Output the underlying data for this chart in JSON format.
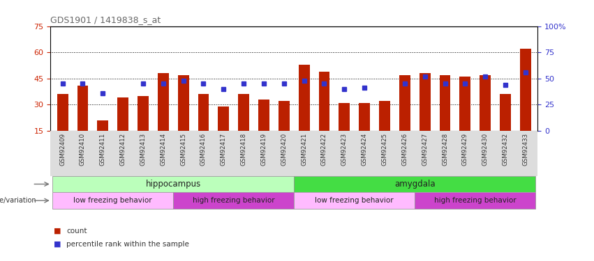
{
  "title": "GDS1901 / 1419838_s_at",
  "samples": [
    "GSM92409",
    "GSM92410",
    "GSM92411",
    "GSM92412",
    "GSM92413",
    "GSM92414",
    "GSM92415",
    "GSM92416",
    "GSM92417",
    "GSM92418",
    "GSM92419",
    "GSM92420",
    "GSM92421",
    "GSM92422",
    "GSM92423",
    "GSM92424",
    "GSM92425",
    "GSM92426",
    "GSM92427",
    "GSM92428",
    "GSM92429",
    "GSM92430",
    "GSM92432",
    "GSM92433"
  ],
  "bar_values": [
    36,
    41,
    21,
    34,
    35,
    48,
    47,
    36,
    29,
    36,
    33,
    32,
    53,
    49,
    31,
    31,
    32,
    47,
    48,
    47,
    46,
    47,
    36,
    62
  ],
  "dot_values": [
    45,
    45,
    36,
    null,
    45,
    45,
    48,
    45,
    40,
    45,
    45,
    45,
    48,
    45,
    40,
    41,
    null,
    45,
    52,
    45,
    45,
    52,
    44,
    56
  ],
  "ylim_left": [
    15,
    75
  ],
  "ylim_right": [
    0,
    100
  ],
  "yticks_left": [
    15,
    30,
    45,
    60,
    75
  ],
  "yticks_right": [
    0,
    25,
    50,
    75,
    100
  ],
  "bar_color": "#bb2000",
  "dot_color": "#3333cc",
  "title_color": "#666666",
  "tissue_groups": [
    {
      "label": "hippocampus",
      "start": 0,
      "end": 11,
      "color": "#bbffbb"
    },
    {
      "label": "amygdala",
      "start": 12,
      "end": 23,
      "color": "#44dd44"
    }
  ],
  "genotype_groups": [
    {
      "label": "low freezing behavior",
      "start": 0,
      "end": 5,
      "color": "#ffbbff"
    },
    {
      "label": "high freezing behavior",
      "start": 6,
      "end": 11,
      "color": "#cc44cc"
    },
    {
      "label": "low freezing behavior",
      "start": 12,
      "end": 17,
      "color": "#ffbbff"
    },
    {
      "label": "high freezing behavior",
      "start": 18,
      "end": 23,
      "color": "#cc44cc"
    }
  ],
  "legend_items": [
    {
      "label": "count",
      "color": "#bb2000"
    },
    {
      "label": "percentile rank within the sample",
      "color": "#3333cc"
    }
  ],
  "axis_color_left": "#cc2200",
  "axis_color_right": "#3333cc",
  "background_color": "#ffffff"
}
